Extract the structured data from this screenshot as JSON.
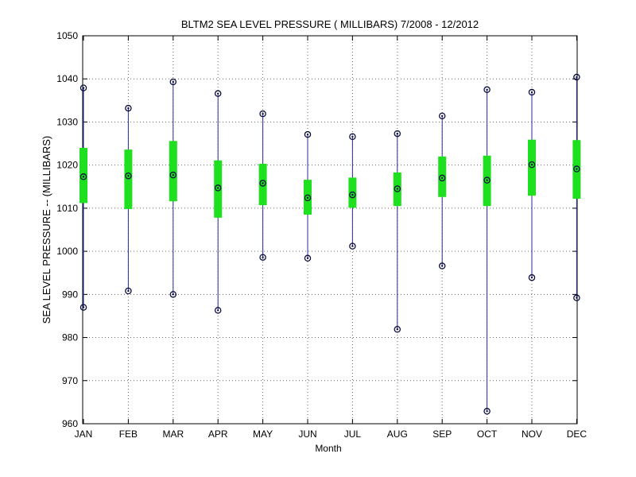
{
  "chart_data": {
    "type": "box",
    "title": "BLTM2  SEA LEVEL PRESSURE ( MILLIBARS) 7/2008 - 12/2012",
    "xlabel": "Month",
    "ylabel": "SEA LEVEL PRESSURE -- (MILLIBARS)",
    "ylim": [
      960,
      1050
    ],
    "yticks": [
      960,
      970,
      980,
      990,
      1000,
      1010,
      1020,
      1030,
      1040,
      1050
    ],
    "grid": true,
    "categories": [
      "JAN",
      "FEB",
      "MAR",
      "APR",
      "MAY",
      "JUN",
      "JUL",
      "AUG",
      "SEP",
      "OCT",
      "NOV",
      "DEC"
    ],
    "series": [
      {
        "min": 987.0,
        "q1": 1011.2,
        "mean": 1017.3,
        "q3": 1024.0,
        "max": 1037.9
      },
      {
        "min": 990.8,
        "q1": 1009.8,
        "mean": 1017.5,
        "q3": 1023.6,
        "max": 1033.2
      },
      {
        "min": 990.0,
        "q1": 1011.6,
        "mean": 1017.7,
        "q3": 1025.6,
        "max": 1039.3
      },
      {
        "min": 986.3,
        "q1": 1007.8,
        "mean": 1014.7,
        "q3": 1021.1,
        "max": 1036.6
      },
      {
        "min": 998.6,
        "q1": 1010.7,
        "mean": 1015.8,
        "q3": 1020.3,
        "max": 1031.9
      },
      {
        "min": 998.4,
        "q1": 1008.5,
        "mean": 1012.4,
        "q3": 1016.6,
        "max": 1027.1
      },
      {
        "min": 1001.2,
        "q1": 1010.1,
        "mean": 1013.1,
        "q3": 1017.1,
        "max": 1026.6
      },
      {
        "min": 981.9,
        "q1": 1010.5,
        "mean": 1014.5,
        "q3": 1018.3,
        "max": 1027.3
      },
      {
        "min": 996.6,
        "q1": 1012.6,
        "mean": 1017.0,
        "q3": 1022.0,
        "max": 1031.4
      },
      {
        "min": 962.9,
        "q1": 1010.5,
        "mean": 1016.5,
        "q3": 1022.2,
        "max": 1037.5
      },
      {
        "min": 993.9,
        "q1": 1012.9,
        "mean": 1020.1,
        "q3": 1025.9,
        "max": 1036.9
      },
      {
        "min": 989.2,
        "q1": 1012.2,
        "mean": 1019.1,
        "q3": 1025.8,
        "max": 1040.4
      }
    ],
    "colors": {
      "whisker": "#2a2a9a",
      "box": "#1fe01f",
      "marker": "#0b1040",
      "grid": "#666666",
      "axis": "#000000"
    }
  }
}
